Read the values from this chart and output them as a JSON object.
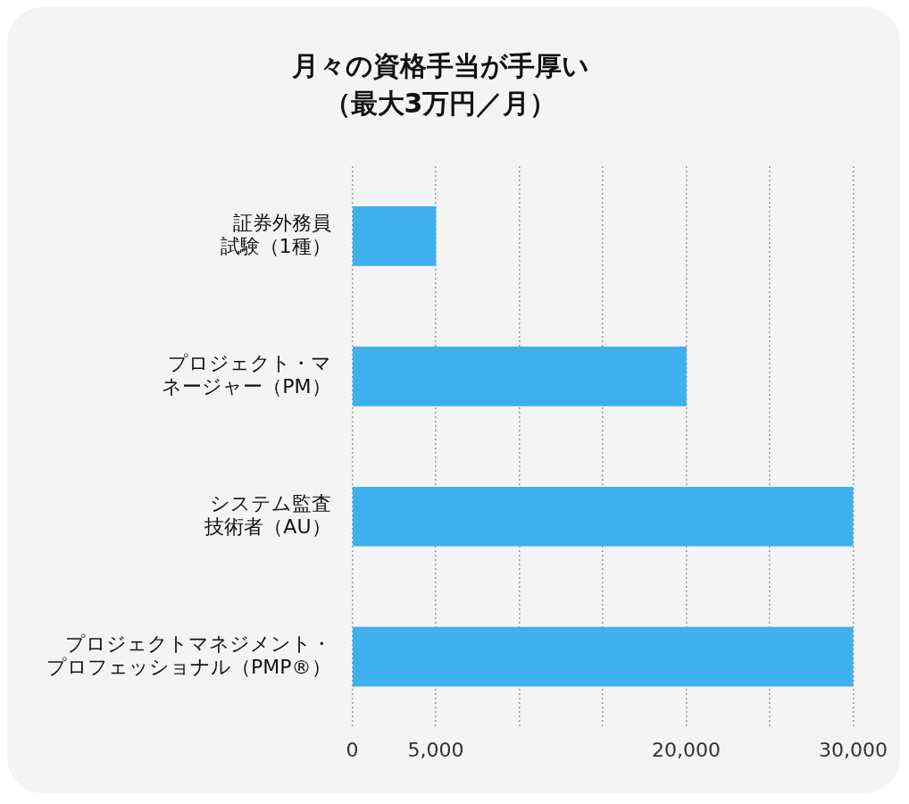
{
  "chart_data": {
    "type": "bar",
    "orientation": "horizontal",
    "title": "月々の資格手当が手厚い",
    "subtitle": "（最大3万円／月）",
    "categories": [
      "証券外務員試験（1種）",
      "プロジェクト・マネージャー（PM）",
      "システム監査技術者（AU）",
      "プロジェクトマネジメント・プロフェッショナル（PMP®）"
    ],
    "values": [
      5000,
      20000,
      30000,
      30000
    ],
    "color": "#3fb0ee",
    "xlim": [
      0,
      30000
    ],
    "xticks": [
      0,
      {
        "value": 5000,
        "label": "5,000"
      },
      {
        "value": 10000,
        "label": null
      },
      {
        "value": 15000,
        "label": null
      },
      {
        "value": 20000,
        "label": "20,000"
      },
      {
        "value": 25000,
        "label": null
      },
      {
        "value": 30000,
        "label": "30,000"
      }
    ],
    "grid": "x",
    "line_style": "dotted"
  }
}
